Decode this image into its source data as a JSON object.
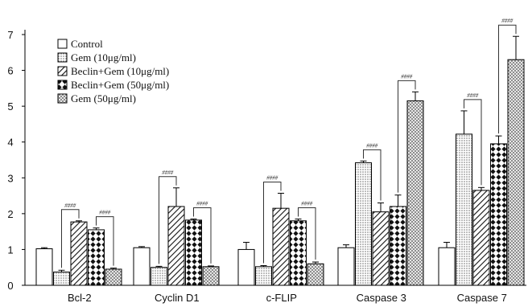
{
  "chart_data": {
    "type": "bar",
    "categories": [
      "Bcl-2",
      "Cyclin D1",
      "c-FLIP",
      "Caspase 3",
      "Caspase 7"
    ],
    "ylim": [
      0,
      7
    ],
    "yticks": [
      0,
      1,
      2,
      3,
      4,
      5,
      6,
      7
    ],
    "legend_position": "top-left",
    "significance_label": "####",
    "series": [
      {
        "name": "Control",
        "pattern": "plain",
        "values": [
          1.02,
          1.05,
          1.0,
          1.05,
          1.05
        ],
        "errors": [
          0.03,
          0.03,
          0.2,
          0.08,
          0.15
        ]
      },
      {
        "name": "Gem (10μg/ml)",
        "pattern": "dots",
        "values": [
          0.37,
          0.5,
          0.52,
          3.42,
          4.22
        ],
        "errors": [
          0.05,
          0.03,
          0.03,
          0.05,
          0.65
        ]
      },
      {
        "name": "Beclin+Gem (10μg/ml)",
        "pattern": "hatch",
        "values": [
          1.77,
          2.2,
          2.15,
          2.05,
          2.65
        ],
        "errors": [
          0.03,
          0.52,
          0.42,
          0.25,
          0.08
        ]
      },
      {
        "name": "Beclin+Gem (50μg/ml)",
        "pattern": "diamond",
        "values": [
          1.55,
          1.82,
          1.8,
          2.2,
          3.95
        ],
        "errors": [
          0.05,
          0.03,
          0.05,
          0.32,
          0.22
        ]
      },
      {
        "name": "Gem (50μg/ml)",
        "pattern": "cross",
        "values": [
          0.45,
          0.52,
          0.6,
          5.15,
          6.3
        ],
        "errors": [
          0.03,
          0.02,
          0.05,
          0.25,
          0.65
        ]
      }
    ],
    "brackets": [
      {
        "category": 0,
        "from": 1,
        "to": 2,
        "label": "####"
      },
      {
        "category": 0,
        "from": 3,
        "to": 4,
        "label": "####"
      },
      {
        "category": 1,
        "from": 1,
        "to": 2,
        "label": "####"
      },
      {
        "category": 1,
        "from": 3,
        "to": 4,
        "label": "####"
      },
      {
        "category": 2,
        "from": 1,
        "to": 2,
        "label": "####"
      },
      {
        "category": 2,
        "from": 3,
        "to": 4,
        "label": "####"
      },
      {
        "category": 3,
        "from": 1,
        "to": 2,
        "label": "####"
      },
      {
        "category": 3,
        "from": 3,
        "to": 4,
        "label": "####"
      },
      {
        "category": 4,
        "from": 1,
        "to": 2,
        "label": "####"
      },
      {
        "category": 4,
        "from": 3,
        "to": 4,
        "label": "####"
      }
    ]
  }
}
